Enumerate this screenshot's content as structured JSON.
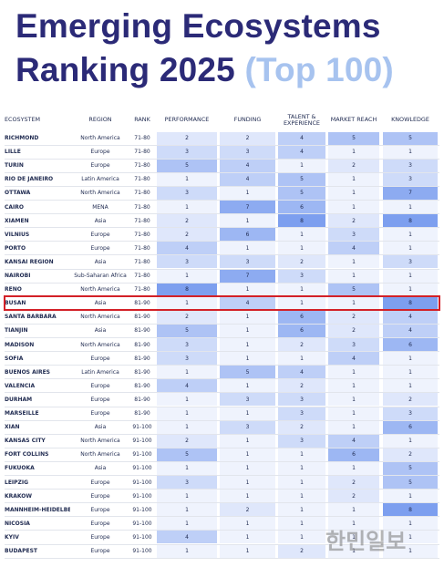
{
  "header": {
    "title_line1": "Emerging Ecosystems",
    "title_line2": "Ranking 2025",
    "title_accent": "(Top 100)"
  },
  "table": {
    "columns": [
      "ECOSYSTEM",
      "REGION",
      "RANK",
      "PERFORMANCE",
      "FUNDING",
      "TALENT & EXPERIENCE",
      "MARKET REACH",
      "KNOWLEDGE"
    ],
    "highlighted_row": 12,
    "rows": [
      [
        "RICHMOND",
        "North America",
        "71-80",
        2,
        2,
        4,
        5,
        5
      ],
      [
        "LILLE",
        "Europe",
        "71-80",
        3,
        3,
        4,
        1,
        1
      ],
      [
        "TURIN",
        "Europe",
        "71-80",
        5,
        4,
        1,
        2,
        3
      ],
      [
        "RIO DE JANEIRO",
        "Latin America",
        "71-80",
        1,
        4,
        5,
        1,
        3
      ],
      [
        "OTTAWA",
        "North America",
        "71-80",
        3,
        1,
        5,
        1,
        7
      ],
      [
        "CAIRO",
        "MENA",
        "71-80",
        1,
        7,
        6,
        1,
        1
      ],
      [
        "XIAMEN",
        "Asia",
        "71-80",
        2,
        1,
        8,
        2,
        8
      ],
      [
        "VILNIUS",
        "Europe",
        "71-80",
        2,
        6,
        1,
        3,
        1
      ],
      [
        "PORTO",
        "Europe",
        "71-80",
        4,
        1,
        1,
        4,
        1
      ],
      [
        "KANSAI REGION",
        "Asia",
        "71-80",
        3,
        3,
        2,
        1,
        3
      ],
      [
        "NAIROBI",
        "Sub-Saharan Africa",
        "71-80",
        1,
        7,
        3,
        1,
        1
      ],
      [
        "RENO",
        "North America",
        "71-80",
        8,
        1,
        1,
        5,
        1
      ],
      [
        "BUSAN",
        "Asia",
        "81-90",
        1,
        4,
        1,
        1,
        8
      ],
      [
        "SANTA BARBARA",
        "North America",
        "81-90",
        2,
        1,
        6,
        2,
        4
      ],
      [
        "TIANJIN",
        "Asia",
        "81-90",
        5,
        1,
        6,
        2,
        4
      ],
      [
        "MADISON",
        "North America",
        "81-90",
        3,
        1,
        2,
        3,
        6
      ],
      [
        "SOFIA",
        "Europe",
        "81-90",
        3,
        1,
        1,
        4,
        1
      ],
      [
        "BUENOS AIRES",
        "Latin America",
        "81-90",
        1,
        5,
        4,
        1,
        1
      ],
      [
        "VALENCIA",
        "Europe",
        "81-90",
        4,
        1,
        2,
        1,
        1
      ],
      [
        "DURHAM",
        "Europe",
        "81-90",
        1,
        3,
        3,
        1,
        2
      ],
      [
        "MARSEILLE",
        "Europe",
        "81-90",
        1,
        1,
        3,
        1,
        3
      ],
      [
        "XIAN",
        "Asia",
        "91-100",
        1,
        3,
        2,
        1,
        6
      ],
      [
        "KANSAS CITY",
        "North America",
        "91-100",
        2,
        1,
        3,
        4,
        1
      ],
      [
        "FORT COLLINS",
        "North America",
        "91-100",
        5,
        1,
        1,
        6,
        2
      ],
      [
        "FUKUOKA",
        "Asia",
        "91-100",
        1,
        1,
        1,
        1,
        5
      ],
      [
        "LEIPZIG",
        "Europe",
        "91-100",
        3,
        1,
        1,
        2,
        5
      ],
      [
        "KRAKOW",
        "Europe",
        "91-100",
        1,
        1,
        1,
        2,
        1
      ],
      [
        "MANNHEIM-HEIDELBERG",
        "Europe",
        "91-100",
        1,
        2,
        1,
        1,
        8
      ],
      [
        "NICOSIA",
        "Europe",
        "91-100",
        1,
        1,
        1,
        1,
        1
      ],
      [
        "KYIV",
        "Europe",
        "91-100",
        4,
        1,
        1,
        1,
        1
      ],
      [
        "BUDAPEST",
        "Europe",
        "91-100",
        1,
        1,
        2,
        1,
        1
      ]
    ]
  },
  "watermark": "한민일보"
}
